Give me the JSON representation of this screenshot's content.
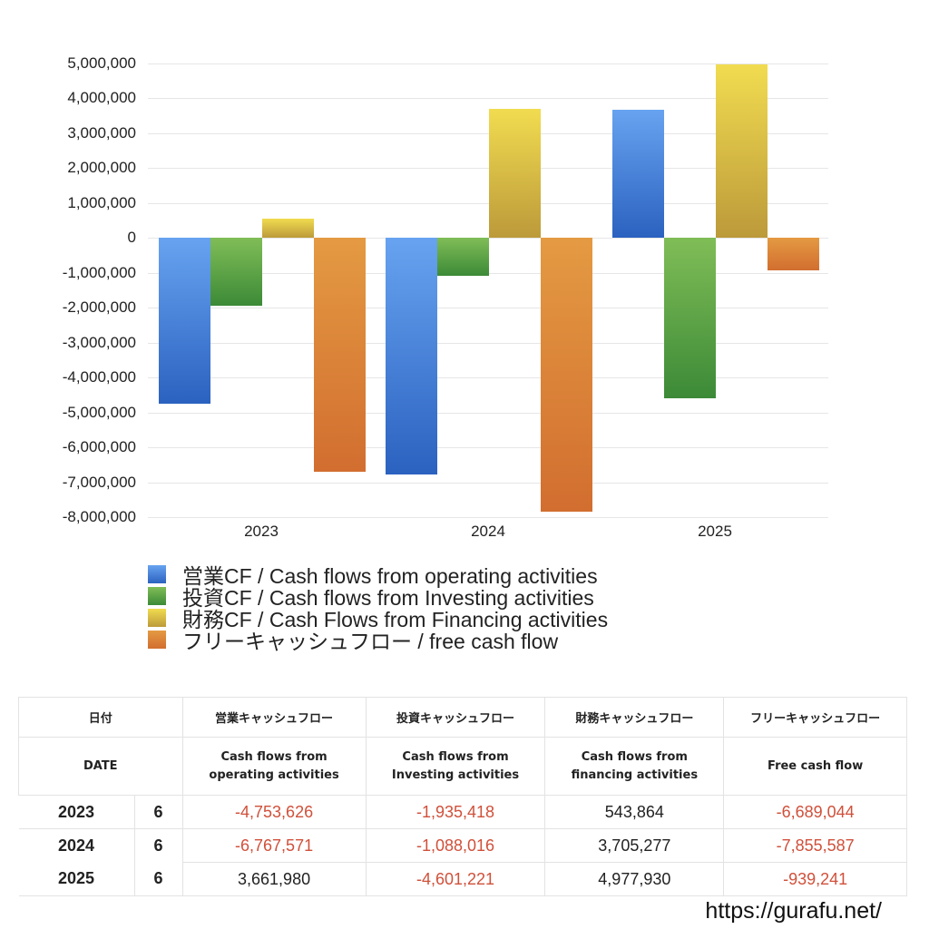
{
  "chart_data": {
    "type": "bar",
    "title": "",
    "xlabel": "",
    "ylabel": "",
    "categories": [
      "2023",
      "2024",
      "2025"
    ],
    "series": [
      {
        "name": "営業CF / Cash flows from operating activities",
        "color": "#4a86dc",
        "values": [
          -4753626,
          -6767571,
          3661980
        ]
      },
      {
        "name": "投資CF / Cash flows from Investing activities",
        "color": "#5aa244",
        "values": [
          -1935418,
          -1088016,
          -4601221
        ]
      },
      {
        "name": "財務CF / Cash Flows from Financing activities",
        "color": "#d9c040",
        "values": [
          543864,
          3705277,
          4977930
        ]
      },
      {
        "name": "フリーキャッシュフロー / free cash flow",
        "color": "#dc7f34",
        "values": [
          -6689044,
          -7855587,
          -939241
        ]
      }
    ],
    "ylim": [
      -8000000,
      5000000
    ],
    "yticks": [
      "5,000,000",
      "4,000,000",
      "3,000,000",
      "2,000,000",
      "1,000,000",
      "0",
      "-1,000,000",
      "-2,000,000",
      "-3,000,000",
      "-4,000,000",
      "-5,000,000",
      "-6,000,000",
      "-7,000,000",
      "-8,000,000"
    ],
    "grid": true,
    "legend_position": "bottom"
  },
  "legend": [
    {
      "label": "営業CF / Cash flows from operating activities"
    },
    {
      "label": "投資CF / Cash flows from Investing activities"
    },
    {
      "label": "財務CF / Cash Flows from Financing activities"
    },
    {
      "label": "フリーキャッシュフロー / free cash flow"
    }
  ],
  "table": {
    "header_jp": [
      "日付",
      "営業キャッシュフロー",
      "投資キャッシュフロー",
      "財務キャッシュフロー",
      "フリーキャッシュフロー"
    ],
    "header_en": [
      "DATE",
      "Cash flows from\noperating activities",
      "Cash flows from\nInvesting activities",
      "Cash flows from\nfinancing activities",
      "Free cash flow"
    ],
    "header_en_lines": [
      [
        "DATE"
      ],
      [
        "Cash flows from",
        "operating activities"
      ],
      [
        "Cash flows from",
        "Investing activities"
      ],
      [
        "Cash flows from",
        "financing activities"
      ],
      [
        "Free cash flow"
      ]
    ],
    "rows": [
      {
        "year": "2023",
        "month": "6",
        "operating": "-4,753,626",
        "investing": "-1,935,418",
        "financing": "543,864",
        "free": "-6,689,044"
      },
      {
        "year": "2024",
        "month": "6",
        "operating": "-6,767,571",
        "investing": "-1,088,016",
        "financing": "3,705,277",
        "free": "-7,855,587"
      },
      {
        "year": "2025",
        "month": "6",
        "operating": "3,661,980",
        "investing": "-4,601,221",
        "financing": "4,977,930",
        "free": "-939,241"
      }
    ]
  },
  "footer": {
    "url": "https://gurafu.net/"
  }
}
